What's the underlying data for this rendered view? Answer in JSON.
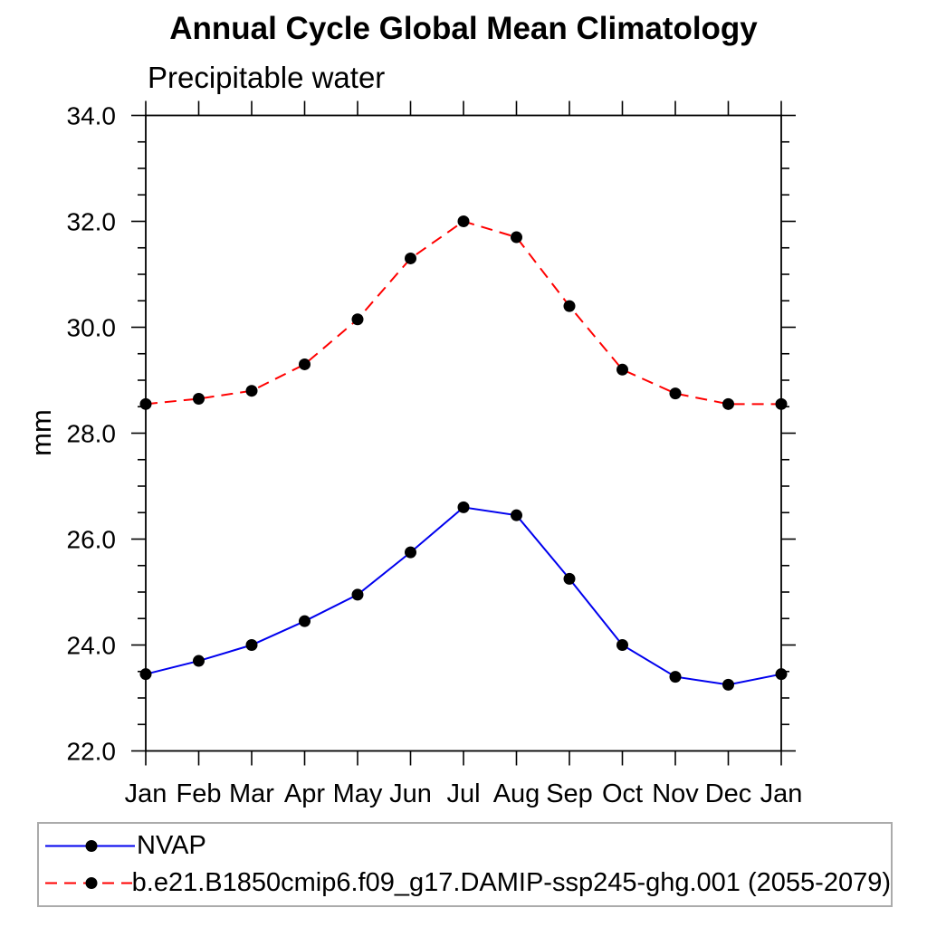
{
  "chart_data": {
    "type": "line",
    "title": "Annual Cycle Global Mean Climatology",
    "subtitle": "Precipitable water",
    "xlabel": "",
    "ylabel": "mm",
    "categories": [
      "Jan",
      "Feb",
      "Mar",
      "Apr",
      "May",
      "Jun",
      "Jul",
      "Aug",
      "Sep",
      "Oct",
      "Nov",
      "Dec",
      "Jan"
    ],
    "ylim": [
      22.0,
      34.0
    ],
    "ytick_major_step": 2.0,
    "ytick_minor_step": 0.5,
    "ytick_major_labels": [
      "22.0",
      "24.0",
      "26.0",
      "28.0",
      "30.0",
      "32.0",
      "34.0"
    ],
    "grid": false,
    "legend_position": "bottom-left-box",
    "axis_color": "#000000",
    "marker_color": "#000000",
    "series": [
      {
        "name": "NVAP",
        "color": "#0000ee",
        "style": "solid",
        "marker": "circle",
        "values": [
          23.45,
          23.7,
          24.0,
          24.45,
          24.95,
          25.75,
          26.6,
          26.45,
          25.25,
          24.0,
          23.4,
          23.25,
          23.45
        ]
      },
      {
        "name": "b.e21.B1850cmip6.f09_g17.DAMIP-ssp245-ghg.001 (2055-2079)",
        "color": "#ff0000",
        "style": "dashed",
        "marker": "circle",
        "values": [
          28.55,
          28.65,
          28.8,
          29.3,
          30.15,
          31.3,
          32.0,
          31.7,
          30.4,
          29.2,
          28.75,
          28.55,
          28.55
        ]
      }
    ]
  }
}
